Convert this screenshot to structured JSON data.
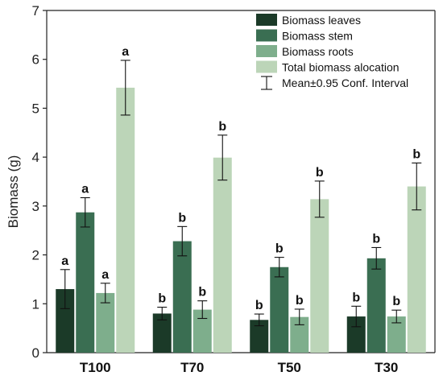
{
  "chart_data": {
    "type": "bar",
    "ylabel": "Biomass (g)",
    "ylim": [
      0,
      7
    ],
    "yticks": [
      0,
      1,
      2,
      3,
      4,
      5,
      6,
      7
    ],
    "grid": false,
    "legend_position": "top-right",
    "categories": [
      "T100",
      "T70",
      "T50",
      "T30"
    ],
    "series": [
      {
        "name": "Biomass leaves",
        "color": "#1b3a28",
        "values": [
          1.3,
          0.8,
          0.67,
          0.74
        ],
        "errors": [
          0.4,
          0.13,
          0.12,
          0.21
        ],
        "labels": [
          "a",
          "b",
          "b",
          "b"
        ]
      },
      {
        "name": "Biomass stem",
        "color": "#3a6e52",
        "values": [
          2.87,
          2.28,
          1.75,
          1.93
        ],
        "errors": [
          0.3,
          0.3,
          0.2,
          0.22
        ],
        "labels": [
          "a",
          "b",
          "b",
          "b"
        ]
      },
      {
        "name": "Biomass roots",
        "color": "#7eae8c",
        "values": [
          1.22,
          0.88,
          0.73,
          0.74
        ],
        "errors": [
          0.2,
          0.18,
          0.16,
          0.13
        ],
        "labels": [
          "a",
          "b",
          "b",
          "b"
        ]
      },
      {
        "name": "Total biomass alocation",
        "color": "#bcd5b8",
        "values": [
          5.42,
          3.99,
          3.14,
          3.4
        ],
        "errors": [
          0.56,
          0.46,
          0.37,
          0.48
        ],
        "labels": [
          "a",
          "b",
          "b",
          "b"
        ]
      }
    ],
    "errorbar_legend": "Mean±0.95 Conf. Interval"
  }
}
